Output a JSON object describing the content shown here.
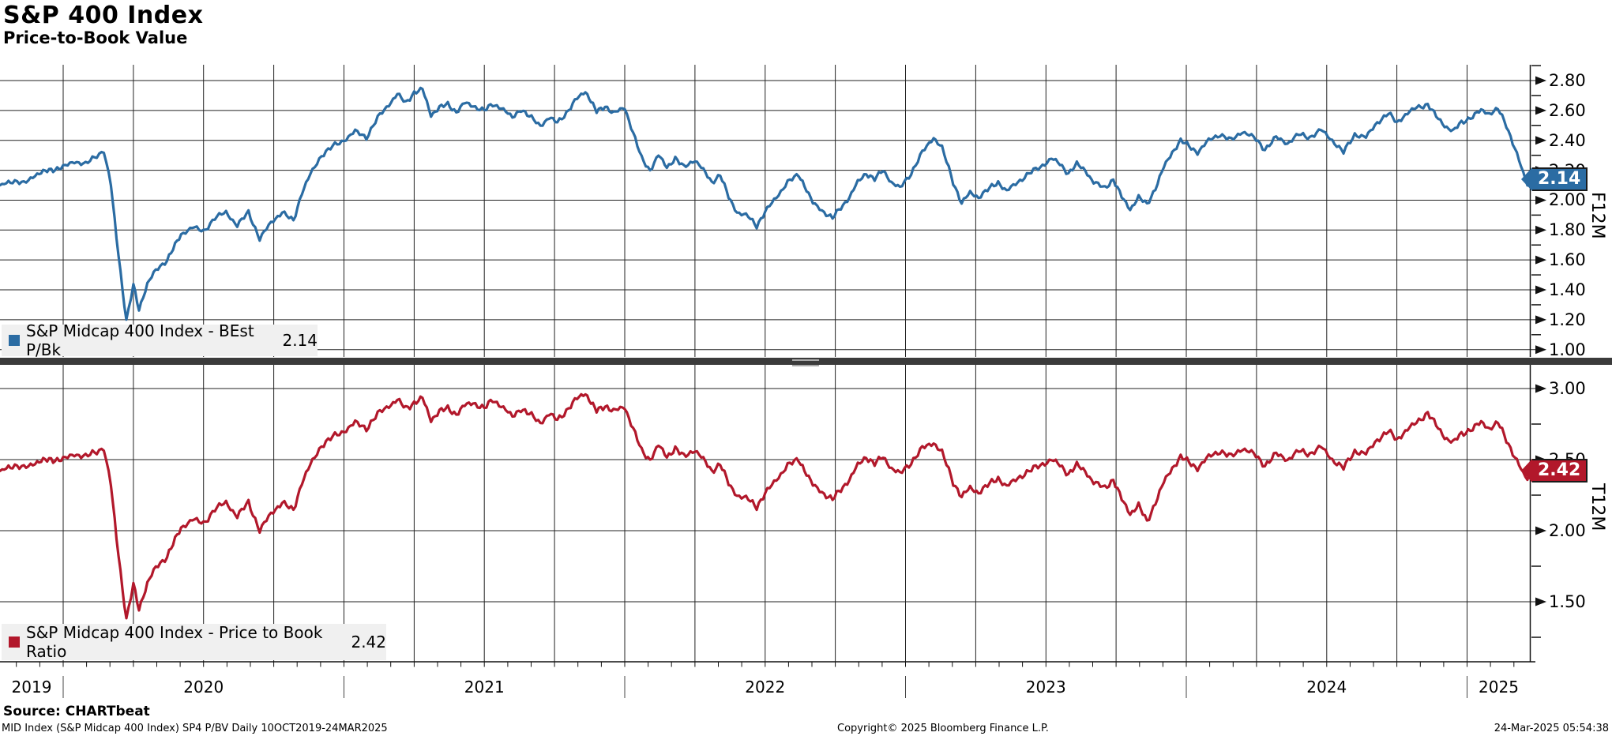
{
  "header": {
    "title": "S&P 400 Index",
    "subtitle": "Price-to-Book Value"
  },
  "footer": {
    "source": "Source: CHARTbeat",
    "left": "MID Index (S&P Midcap 400 Index) SP4 P/BV  Daily 10OCT2019-24MAR2025",
    "center": "Copyright© 2025 Bloomberg Finance L.P.",
    "right": "24-Mar-2025 05:54:38"
  },
  "colors": {
    "blue_series": "#2B6CA3",
    "red_series": "#B2182B",
    "gridline": "#222222",
    "legend_bg": "#f0f0f0",
    "divider": "#3b3b3b"
  },
  "x_axis": {
    "start_decimal_year": 2019.775,
    "end_decimal_year": 2025.225,
    "range_text": "10OCT2019-24MAR2025",
    "frequency": "Daily",
    "year_labels": [
      "2019",
      "2020",
      "2021",
      "2022",
      "2023",
      "2024",
      "2025"
    ],
    "gridlines": "quarterly"
  },
  "chart_data": [
    {
      "type": "line",
      "panel": "top",
      "legend_label": "S&P Midcap 400 Index - BEst P/Bk",
      "last_value": "2.14",
      "axis_title": "F12M",
      "color": "#2B6CA3",
      "ylim": [
        0.95,
        2.91
      ],
      "yticks": [
        "2.80",
        "2.60",
        "2.40",
        "2.20",
        "2.00",
        "1.80",
        "1.60",
        "1.40",
        "1.20",
        "1.00"
      ],
      "yticks_minor": [
        2.9,
        2.7,
        2.5,
        2.3,
        2.1,
        1.9,
        1.7,
        1.5,
        1.3,
        1.1
      ],
      "legend_position": "bottom-left",
      "points": [
        [
          2019.775,
          2.1
        ],
        [
          2019.82,
          2.13
        ],
        [
          2019.86,
          2.11
        ],
        [
          2019.9,
          2.17
        ],
        [
          2019.95,
          2.2
        ],
        [
          2020.0,
          2.22
        ],
        [
          2020.04,
          2.26
        ],
        [
          2020.08,
          2.24
        ],
        [
          2020.12,
          2.3
        ],
        [
          2020.145,
          2.33
        ],
        [
          2020.17,
          2.1
        ],
        [
          2020.19,
          1.75
        ],
        [
          2020.225,
          1.19
        ],
        [
          2020.25,
          1.43
        ],
        [
          2020.27,
          1.27
        ],
        [
          2020.3,
          1.44
        ],
        [
          2020.33,
          1.53
        ],
        [
          2020.37,
          1.6
        ],
        [
          2020.42,
          1.77
        ],
        [
          2020.46,
          1.82
        ],
        [
          2020.5,
          1.79
        ],
        [
          2020.54,
          1.88
        ],
        [
          2020.58,
          1.92
        ],
        [
          2020.62,
          1.83
        ],
        [
          2020.66,
          1.92
        ],
        [
          2020.7,
          1.74
        ],
        [
          2020.74,
          1.85
        ],
        [
          2020.78,
          1.92
        ],
        [
          2020.82,
          1.86
        ],
        [
          2020.85,
          2.05
        ],
        [
          2020.88,
          2.17
        ],
        [
          2020.92,
          2.3
        ],
        [
          2020.96,
          2.36
        ],
        [
          2021.0,
          2.4
        ],
        [
          2021.04,
          2.46
        ],
        [
          2021.08,
          2.42
        ],
        [
          2021.12,
          2.55
        ],
        [
          2021.16,
          2.64
        ],
        [
          2021.19,
          2.71
        ],
        [
          2021.22,
          2.65
        ],
        [
          2021.25,
          2.72
        ],
        [
          2021.28,
          2.74
        ],
        [
          2021.31,
          2.57
        ],
        [
          2021.34,
          2.62
        ],
        [
          2021.37,
          2.64
        ],
        [
          2021.4,
          2.59
        ],
        [
          2021.43,
          2.65
        ],
        [
          2021.46,
          2.63
        ],
        [
          2021.5,
          2.6
        ],
        [
          2021.53,
          2.64
        ],
        [
          2021.56,
          2.62
        ],
        [
          2021.6,
          2.55
        ],
        [
          2021.63,
          2.61
        ],
        [
          2021.66,
          2.56
        ],
        [
          2021.7,
          2.5
        ],
        [
          2021.73,
          2.55
        ],
        [
          2021.76,
          2.52
        ],
        [
          2021.8,
          2.6
        ],
        [
          2021.83,
          2.68
        ],
        [
          2021.86,
          2.73
        ],
        [
          2021.88,
          2.66
        ],
        [
          2021.9,
          2.59
        ],
        [
          2021.93,
          2.63
        ],
        [
          2021.96,
          2.58
        ],
        [
          2022.0,
          2.62
        ],
        [
          2022.03,
          2.45
        ],
        [
          2022.06,
          2.28
        ],
        [
          2022.09,
          2.2
        ],
        [
          2022.12,
          2.3
        ],
        [
          2022.15,
          2.22
        ],
        [
          2022.18,
          2.28
        ],
        [
          2022.21,
          2.22
        ],
        [
          2022.25,
          2.27
        ],
        [
          2022.28,
          2.2
        ],
        [
          2022.31,
          2.12
        ],
        [
          2022.34,
          2.17
        ],
        [
          2022.37,
          2.02
        ],
        [
          2022.4,
          1.92
        ],
        [
          2022.44,
          1.89
        ],
        [
          2022.47,
          1.83
        ],
        [
          2022.5,
          1.92
        ],
        [
          2022.54,
          2.02
        ],
        [
          2022.58,
          2.12
        ],
        [
          2022.62,
          2.17
        ],
        [
          2022.64,
          2.1
        ],
        [
          2022.67,
          1.98
        ],
        [
          2022.71,
          1.92
        ],
        [
          2022.74,
          1.88
        ],
        [
          2022.77,
          1.95
        ],
        [
          2022.8,
          2.02
        ],
        [
          2022.83,
          2.12
        ],
        [
          2022.86,
          2.18
        ],
        [
          2022.89,
          2.14
        ],
        [
          2022.92,
          2.2
        ],
        [
          2022.95,
          2.12
        ],
        [
          2022.98,
          2.08
        ],
        [
          2023.02,
          2.18
        ],
        [
          2023.06,
          2.32
        ],
        [
          2023.1,
          2.42
        ],
        [
          2023.13,
          2.35
        ],
        [
          2023.17,
          2.12
        ],
        [
          2023.2,
          1.98
        ],
        [
          2023.23,
          2.05
        ],
        [
          2023.26,
          2.02
        ],
        [
          2023.3,
          2.08
        ],
        [
          2023.33,
          2.12
        ],
        [
          2023.36,
          2.06
        ],
        [
          2023.4,
          2.12
        ],
        [
          2023.44,
          2.18
        ],
        [
          2023.48,
          2.22
        ],
        [
          2023.52,
          2.28
        ],
        [
          2023.55,
          2.24
        ],
        [
          2023.58,
          2.18
        ],
        [
          2023.61,
          2.24
        ],
        [
          2023.64,
          2.2
        ],
        [
          2023.67,
          2.12
        ],
        [
          2023.71,
          2.08
        ],
        [
          2023.74,
          2.14
        ],
        [
          2023.77,
          2.02
        ],
        [
          2023.8,
          1.94
        ],
        [
          2023.83,
          2.02
        ],
        [
          2023.86,
          1.97
        ],
        [
          2023.89,
          2.08
        ],
        [
          2023.92,
          2.22
        ],
        [
          2023.95,
          2.32
        ],
        [
          2023.98,
          2.4
        ],
        [
          2024.01,
          2.36
        ],
        [
          2024.04,
          2.32
        ],
        [
          2024.08,
          2.4
        ],
        [
          2024.12,
          2.44
        ],
        [
          2024.16,
          2.4
        ],
        [
          2024.2,
          2.46
        ],
        [
          2024.24,
          2.42
        ],
        [
          2024.28,
          2.34
        ],
        [
          2024.32,
          2.42
        ],
        [
          2024.36,
          2.38
        ],
        [
          2024.4,
          2.44
        ],
        [
          2024.44,
          2.42
        ],
        [
          2024.48,
          2.47
        ],
        [
          2024.52,
          2.4
        ],
        [
          2024.56,
          2.32
        ],
        [
          2024.6,
          2.44
        ],
        [
          2024.64,
          2.42
        ],
        [
          2024.68,
          2.52
        ],
        [
          2024.72,
          2.58
        ],
        [
          2024.75,
          2.52
        ],
        [
          2024.78,
          2.57
        ],
        [
          2024.82,
          2.62
        ],
        [
          2024.86,
          2.64
        ],
        [
          2024.89,
          2.56
        ],
        [
          2024.92,
          2.5
        ],
        [
          2024.95,
          2.46
        ],
        [
          2024.98,
          2.52
        ],
        [
          2025.02,
          2.56
        ],
        [
          2025.05,
          2.6
        ],
        [
          2025.08,
          2.58
        ],
        [
          2025.11,
          2.61
        ],
        [
          2025.14,
          2.5
        ],
        [
          2025.17,
          2.35
        ],
        [
          2025.2,
          2.18
        ],
        [
          2025.215,
          2.1
        ],
        [
          2025.225,
          2.14
        ]
      ]
    },
    {
      "type": "line",
      "panel": "bottom",
      "legend_label": "S&P Midcap 400 Index - Price to Book Ratio",
      "last_value": "2.42",
      "axis_title": "T12M",
      "color": "#B2182B",
      "ylim": [
        1.08,
        3.17
      ],
      "yticks": [
        "3.00",
        "2.50",
        "2.00",
        "1.50"
      ],
      "yticks_minor": [
        2.75,
        2.25,
        1.75,
        1.25
      ],
      "legend_position": "bottom-left",
      "points": [
        [
          2019.775,
          2.42
        ],
        [
          2019.82,
          2.46
        ],
        [
          2019.86,
          2.44
        ],
        [
          2019.9,
          2.48
        ],
        [
          2019.95,
          2.5
        ],
        [
          2020.0,
          2.5
        ],
        [
          2020.04,
          2.54
        ],
        [
          2020.08,
          2.52
        ],
        [
          2020.12,
          2.56
        ],
        [
          2020.145,
          2.58
        ],
        [
          2020.17,
          2.32
        ],
        [
          2020.19,
          1.95
        ],
        [
          2020.225,
          1.37
        ],
        [
          2020.25,
          1.62
        ],
        [
          2020.27,
          1.45
        ],
        [
          2020.3,
          1.63
        ],
        [
          2020.33,
          1.74
        ],
        [
          2020.37,
          1.82
        ],
        [
          2020.42,
          2.02
        ],
        [
          2020.46,
          2.08
        ],
        [
          2020.5,
          2.05
        ],
        [
          2020.54,
          2.15
        ],
        [
          2020.58,
          2.2
        ],
        [
          2020.62,
          2.1
        ],
        [
          2020.66,
          2.2
        ],
        [
          2020.7,
          2.0
        ],
        [
          2020.74,
          2.12
        ],
        [
          2020.78,
          2.2
        ],
        [
          2020.82,
          2.14
        ],
        [
          2020.85,
          2.34
        ],
        [
          2020.88,
          2.46
        ],
        [
          2020.92,
          2.6
        ],
        [
          2020.96,
          2.66
        ],
        [
          2021.0,
          2.7
        ],
        [
          2021.04,
          2.76
        ],
        [
          2021.08,
          2.72
        ],
        [
          2021.12,
          2.82
        ],
        [
          2021.16,
          2.88
        ],
        [
          2021.19,
          2.92
        ],
        [
          2021.22,
          2.86
        ],
        [
          2021.25,
          2.9
        ],
        [
          2021.28,
          2.93
        ],
        [
          2021.31,
          2.78
        ],
        [
          2021.34,
          2.84
        ],
        [
          2021.37,
          2.86
        ],
        [
          2021.4,
          2.82
        ],
        [
          2021.43,
          2.88
        ],
        [
          2021.46,
          2.9
        ],
        [
          2021.5,
          2.86
        ],
        [
          2021.53,
          2.92
        ],
        [
          2021.56,
          2.88
        ],
        [
          2021.6,
          2.8
        ],
        [
          2021.63,
          2.86
        ],
        [
          2021.66,
          2.82
        ],
        [
          2021.7,
          2.76
        ],
        [
          2021.73,
          2.82
        ],
        [
          2021.76,
          2.78
        ],
        [
          2021.8,
          2.86
        ],
        [
          2021.83,
          2.93
        ],
        [
          2021.86,
          2.97
        ],
        [
          2021.88,
          2.9
        ],
        [
          2021.9,
          2.84
        ],
        [
          2021.93,
          2.88
        ],
        [
          2021.96,
          2.84
        ],
        [
          2022.0,
          2.87
        ],
        [
          2022.03,
          2.72
        ],
        [
          2022.06,
          2.56
        ],
        [
          2022.09,
          2.5
        ],
        [
          2022.12,
          2.6
        ],
        [
          2022.15,
          2.52
        ],
        [
          2022.18,
          2.58
        ],
        [
          2022.21,
          2.52
        ],
        [
          2022.25,
          2.57
        ],
        [
          2022.28,
          2.5
        ],
        [
          2022.31,
          2.42
        ],
        [
          2022.34,
          2.47
        ],
        [
          2022.37,
          2.33
        ],
        [
          2022.4,
          2.25
        ],
        [
          2022.44,
          2.22
        ],
        [
          2022.47,
          2.17
        ],
        [
          2022.5,
          2.26
        ],
        [
          2022.54,
          2.36
        ],
        [
          2022.58,
          2.46
        ],
        [
          2022.62,
          2.5
        ],
        [
          2022.64,
          2.43
        ],
        [
          2022.67,
          2.32
        ],
        [
          2022.71,
          2.26
        ],
        [
          2022.74,
          2.22
        ],
        [
          2022.77,
          2.29
        ],
        [
          2022.8,
          2.36
        ],
        [
          2022.83,
          2.46
        ],
        [
          2022.86,
          2.52
        ],
        [
          2022.89,
          2.47
        ],
        [
          2022.92,
          2.52
        ],
        [
          2022.95,
          2.44
        ],
        [
          2022.98,
          2.4
        ],
        [
          2023.02,
          2.48
        ],
        [
          2023.06,
          2.58
        ],
        [
          2023.1,
          2.62
        ],
        [
          2023.13,
          2.55
        ],
        [
          2023.17,
          2.34
        ],
        [
          2023.2,
          2.24
        ],
        [
          2023.23,
          2.3
        ],
        [
          2023.26,
          2.27
        ],
        [
          2023.3,
          2.33
        ],
        [
          2023.33,
          2.37
        ],
        [
          2023.36,
          2.31
        ],
        [
          2023.4,
          2.37
        ],
        [
          2023.44,
          2.42
        ],
        [
          2023.48,
          2.46
        ],
        [
          2023.52,
          2.5
        ],
        [
          2023.55,
          2.46
        ],
        [
          2023.58,
          2.4
        ],
        [
          2023.61,
          2.46
        ],
        [
          2023.64,
          2.42
        ],
        [
          2023.67,
          2.34
        ],
        [
          2023.71,
          2.3
        ],
        [
          2023.74,
          2.36
        ],
        [
          2023.77,
          2.22
        ],
        [
          2023.8,
          2.12
        ],
        [
          2023.83,
          2.18
        ],
        [
          2023.86,
          2.06
        ],
        [
          2023.89,
          2.2
        ],
        [
          2023.92,
          2.34
        ],
        [
          2023.95,
          2.44
        ],
        [
          2023.98,
          2.52
        ],
        [
          2024.01,
          2.48
        ],
        [
          2024.04,
          2.44
        ],
        [
          2024.08,
          2.52
        ],
        [
          2024.12,
          2.56
        ],
        [
          2024.16,
          2.52
        ],
        [
          2024.2,
          2.58
        ],
        [
          2024.24,
          2.54
        ],
        [
          2024.28,
          2.46
        ],
        [
          2024.32,
          2.54
        ],
        [
          2024.36,
          2.5
        ],
        [
          2024.4,
          2.56
        ],
        [
          2024.44,
          2.54
        ],
        [
          2024.48,
          2.59
        ],
        [
          2024.52,
          2.5
        ],
        [
          2024.56,
          2.44
        ],
        [
          2024.6,
          2.56
        ],
        [
          2024.64,
          2.54
        ],
        [
          2024.68,
          2.64
        ],
        [
          2024.72,
          2.7
        ],
        [
          2024.75,
          2.64
        ],
        [
          2024.78,
          2.7
        ],
        [
          2024.82,
          2.76
        ],
        [
          2024.86,
          2.83
        ],
        [
          2024.89,
          2.74
        ],
        [
          2024.92,
          2.66
        ],
        [
          2024.95,
          2.62
        ],
        [
          2024.98,
          2.68
        ],
        [
          2025.02,
          2.72
        ],
        [
          2025.05,
          2.76
        ],
        [
          2025.08,
          2.72
        ],
        [
          2025.11,
          2.76
        ],
        [
          2025.14,
          2.64
        ],
        [
          2025.17,
          2.52
        ],
        [
          2025.2,
          2.4
        ],
        [
          2025.215,
          2.36
        ],
        [
          2025.225,
          2.42
        ]
      ]
    }
  ]
}
